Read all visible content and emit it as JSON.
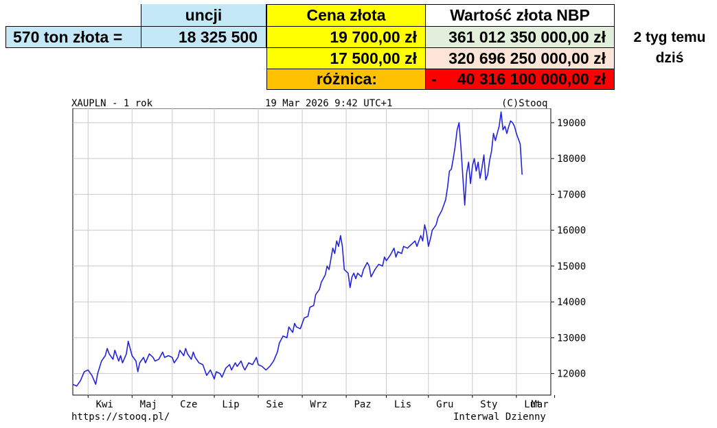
{
  "table": {
    "header_unci": "uncji",
    "header_cena": "Cena złota",
    "header_wartosc": "Wartość złota NBP",
    "row1_label": "570 ton złota =",
    "row1_unci": "18 325 500",
    "row1_cena": "19 700,00 zł",
    "row1_wartosc": "361 012 350 000,00 zł",
    "row2_cena": "17 500,00 zł",
    "row2_wartosc": "320 696 250 000,00 zł",
    "row3_label": "różnica:",
    "row3_sign": "-",
    "row3_value": "40 316 100 000,00 zł",
    "side_label_1": "2 tyg temu",
    "side_label_2": "dziś"
  },
  "colors": {
    "light_blue": "#c5e8f7",
    "yellow": "#ffff00",
    "light_green": "#e2efda",
    "light_pink": "#fce4d6",
    "orange": "#ffc000",
    "red": "#ff0000",
    "line": "#2222dd"
  },
  "chart_header": {
    "left": "XAUPLN - 1 rok",
    "center": "19 Mar 2026 9:42 UTC+1",
    "right": "(C)Stooq",
    "footer_left": "https://stooq.pl/",
    "footer_right": "Interwal Dzienny"
  },
  "chart_data": {
    "type": "line",
    "title": "XAUPLN - 1 rok",
    "grid": true,
    "ylim": [
      11400,
      19400
    ],
    "y_ticks": [
      12000,
      13000,
      14000,
      15000,
      16000,
      17000,
      18000,
      19000
    ],
    "x_tick_labels": [
      "Kwi",
      "Maj",
      "Cze",
      "Lip",
      "Sie",
      "Wrz",
      "Paz",
      "Lis",
      "Gru",
      "Sty",
      "Lut",
      "Mar"
    ],
    "x_range": [
      0,
      250
    ],
    "x_ticks": [
      8,
      31,
      52,
      74,
      97,
      120,
      143,
      164,
      186,
      209,
      232,
      252
    ],
    "series": [
      {
        "values": [
          [
            0,
            11700
          ],
          [
            2,
            11650
          ],
          [
            4,
            11800
          ],
          [
            6,
            12050
          ],
          [
            8,
            12100
          ],
          [
            10,
            11950
          ],
          [
            12,
            11700
          ],
          [
            13,
            12000
          ],
          [
            15,
            12350
          ],
          [
            17,
            12500
          ],
          [
            18,
            12700
          ],
          [
            19,
            12550
          ],
          [
            21,
            12400
          ],
          [
            22,
            12650
          ],
          [
            24,
            12350
          ],
          [
            25,
            12500
          ],
          [
            26,
            12300
          ],
          [
            28,
            12550
          ],
          [
            29,
            12900
          ],
          [
            30,
            12700
          ],
          [
            31,
            12500
          ],
          [
            33,
            12350
          ],
          [
            34,
            12050
          ],
          [
            35,
            12300
          ],
          [
            37,
            12450
          ],
          [
            38,
            12300
          ],
          [
            40,
            12550
          ],
          [
            42,
            12450
          ],
          [
            43,
            12350
          ],
          [
            45,
            12400
          ],
          [
            47,
            12600
          ],
          [
            48,
            12450
          ],
          [
            50,
            12500
          ],
          [
            52,
            12450
          ],
          [
            53,
            12300
          ],
          [
            55,
            12450
          ],
          [
            56,
            12650
          ],
          [
            58,
            12500
          ],
          [
            59,
            12700
          ],
          [
            60,
            12550
          ],
          [
            62,
            12400
          ],
          [
            63,
            12600
          ],
          [
            64,
            12450
          ],
          [
            66,
            12300
          ],
          [
            68,
            12250
          ],
          [
            70,
            11950
          ],
          [
            72,
            12100
          ],
          [
            74,
            11850
          ],
          [
            75,
            12050
          ],
          [
            77,
            12000
          ],
          [
            78,
            11900
          ],
          [
            80,
            12150
          ],
          [
            82,
            12250
          ],
          [
            83,
            12100
          ],
          [
            85,
            12300
          ],
          [
            86,
            12200
          ],
          [
            88,
            12350
          ],
          [
            89,
            12200
          ],
          [
            90,
            12100
          ],
          [
            92,
            12300
          ],
          [
            94,
            12250
          ],
          [
            96,
            12450
          ],
          [
            97,
            12250
          ],
          [
            99,
            12200
          ],
          [
            101,
            12100
          ],
          [
            103,
            12200
          ],
          [
            105,
            12350
          ],
          [
            107,
            12600
          ],
          [
            108,
            12850
          ],
          [
            110,
            13050
          ],
          [
            112,
            13000
          ],
          [
            113,
            13300
          ],
          [
            115,
            13150
          ],
          [
            116,
            13400
          ],
          [
            117,
            13300
          ],
          [
            119,
            13250
          ],
          [
            121,
            13550
          ],
          [
            123,
            13600
          ],
          [
            124,
            13850
          ],
          [
            126,
            13900
          ],
          [
            127,
            14200
          ],
          [
            129,
            14350
          ],
          [
            130,
            14550
          ],
          [
            132,
            14750
          ],
          [
            133,
            15000
          ],
          [
            134,
            14900
          ],
          [
            136,
            15500
          ],
          [
            137,
            15350
          ],
          [
            138,
            15700
          ],
          [
            139,
            15550
          ],
          [
            140,
            15850
          ],
          [
            141,
            15550
          ],
          [
            142,
            14900
          ],
          [
            144,
            14800
          ],
          [
            145,
            14400
          ],
          [
            146,
            14700
          ],
          [
            147,
            14800
          ],
          [
            148,
            14650
          ],
          [
            149,
            14800
          ],
          [
            151,
            14700
          ],
          [
            152,
            14900
          ],
          [
            154,
            15100
          ],
          [
            155,
            15000
          ],
          [
            156,
            14700
          ],
          [
            158,
            14900
          ],
          [
            160,
            15050
          ],
          [
            162,
            15000
          ],
          [
            163,
            15250
          ],
          [
            164,
            15150
          ],
          [
            166,
            15300
          ],
          [
            168,
            15500
          ],
          [
            169,
            15250
          ],
          [
            170,
            15400
          ],
          [
            172,
            15350
          ],
          [
            173,
            15550
          ],
          [
            175,
            15500
          ],
          [
            177,
            15600
          ],
          [
            179,
            15700
          ],
          [
            180,
            15550
          ],
          [
            182,
            15850
          ],
          [
            183,
            15700
          ],
          [
            184,
            16150
          ],
          [
            185,
            15950
          ],
          [
            186,
            15550
          ],
          [
            187,
            15750
          ],
          [
            188,
            16000
          ],
          [
            190,
            16150
          ],
          [
            191,
            16350
          ],
          [
            193,
            16550
          ],
          [
            194,
            16700
          ],
          [
            195,
            16850
          ],
          [
            196,
            17200
          ],
          [
            197,
            17650
          ],
          [
            198,
            17700
          ],
          [
            199,
            18000
          ],
          [
            200,
            18350
          ],
          [
            201,
            18800
          ],
          [
            202,
            19000
          ],
          [
            203,
            18300
          ],
          [
            204,
            17500
          ],
          [
            205,
            16700
          ],
          [
            206,
            17600
          ],
          [
            207,
            17900
          ],
          [
            208,
            17300
          ],
          [
            209,
            17800
          ],
          [
            210,
            18000
          ],
          [
            211,
            17650
          ],
          [
            212,
            17900
          ],
          [
            213,
            17450
          ],
          [
            214,
            17750
          ],
          [
            215,
            18100
          ],
          [
            216,
            17400
          ],
          [
            217,
            17550
          ],
          [
            218,
            17950
          ],
          [
            219,
            18200
          ],
          [
            220,
            18700
          ],
          [
            221,
            18500
          ],
          [
            222,
            18700
          ],
          [
            223,
            18900
          ],
          [
            224,
            19300
          ],
          [
            225,
            18800
          ],
          [
            226,
            18900
          ],
          [
            227,
            18700
          ],
          [
            228,
            18900
          ],
          [
            229,
            19050
          ],
          [
            230,
            19000
          ],
          [
            231,
            18900
          ],
          [
            232,
            18700
          ],
          [
            233,
            18550
          ],
          [
            234,
            18400
          ],
          [
            235,
            17550
          ]
        ]
      }
    ]
  }
}
